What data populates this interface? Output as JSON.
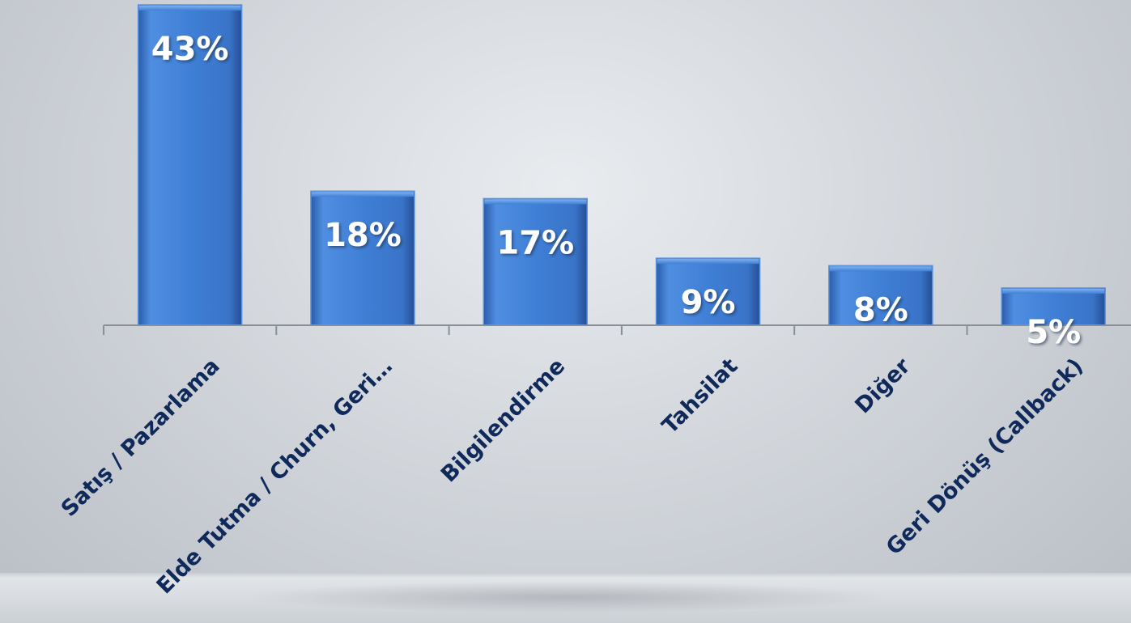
{
  "chart_data": {
    "type": "bar",
    "categories": [
      "Satış / Pazarlama",
      "Elde Tutma / Churn, Geri…",
      "Bilgilendirme",
      "Tahsilat",
      "Diğer",
      "Geri Dönüş (Callback)"
    ],
    "values": [
      43,
      18,
      17,
      9,
      8,
      5
    ],
    "data_labels": [
      "43%",
      "18%",
      "17%",
      "9%",
      "8%",
      "5%"
    ],
    "ylim": [
      0,
      43
    ],
    "grid": false,
    "legend": "none",
    "colors": {
      "bar": "#3f7fd6",
      "bar_dark": "#2f63b3",
      "label_text": "#0f2a5a",
      "value_text": "#ffffff",
      "axis": "#8a8f96"
    }
  }
}
